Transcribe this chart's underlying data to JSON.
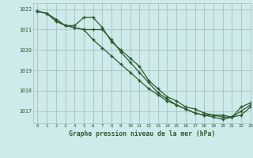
{
  "background_color": "#ceeaea",
  "grid_color": "#b0c8c8",
  "line_color": "#2d5a2d",
  "title": "Graphe pression niveau de la mer (hPa)",
  "xlim": [
    -0.5,
    23
  ],
  "ylim": [
    1016.4,
    1022.3
  ],
  "yticks": [
    1017,
    1018,
    1019,
    1020,
    1021,
    1022
  ],
  "xticks": [
    0,
    1,
    2,
    3,
    4,
    5,
    6,
    7,
    8,
    9,
    10,
    11,
    12,
    13,
    14,
    15,
    16,
    17,
    18,
    19,
    20,
    21,
    22,
    23
  ],
  "line1_x": [
    0,
    1,
    2,
    3,
    4,
    5,
    6,
    7,
    8,
    9,
    10,
    11,
    12,
    13,
    14,
    15,
    16,
    17,
    18,
    19,
    20,
    21,
    22,
    23
  ],
  "line1_y": [
    1021.9,
    1021.8,
    1021.5,
    1021.2,
    1021.2,
    1021.6,
    1021.6,
    1021.1,
    1020.4,
    1020.0,
    1019.6,
    1019.2,
    1018.5,
    1018.1,
    1017.7,
    1017.5,
    1017.2,
    1017.1,
    1016.9,
    1016.8,
    1016.8,
    1016.7,
    1017.2,
    1017.4
  ],
  "line2_x": [
    0,
    1,
    2,
    3,
    4,
    5,
    6,
    7,
    8,
    9,
    10,
    11,
    12,
    13,
    14,
    15,
    16,
    17,
    18,
    19,
    20,
    21,
    22,
    23
  ],
  "line2_y": [
    1021.9,
    1021.8,
    1021.5,
    1021.2,
    1021.1,
    1021.0,
    1021.0,
    1021.0,
    1020.5,
    1019.9,
    1019.4,
    1018.9,
    1018.4,
    1017.9,
    1017.6,
    1017.3,
    1017.1,
    1016.9,
    1016.8,
    1016.8,
    1016.7,
    1016.7,
    1017.0,
    1017.3
  ],
  "line3_x": [
    0,
    1,
    2,
    3,
    4,
    5,
    6,
    7,
    8,
    9,
    10,
    11,
    12,
    13,
    14,
    15,
    16,
    17,
    18,
    19,
    20,
    21,
    22,
    23
  ],
  "line3_y": [
    1021.9,
    1021.8,
    1021.4,
    1021.2,
    1021.1,
    1021.0,
    1020.5,
    1020.1,
    1019.7,
    1019.3,
    1018.9,
    1018.5,
    1018.1,
    1017.8,
    1017.5,
    1017.3,
    1017.1,
    1016.9,
    1016.8,
    1016.7,
    1016.6,
    1016.7,
    1016.8,
    1017.2
  ]
}
